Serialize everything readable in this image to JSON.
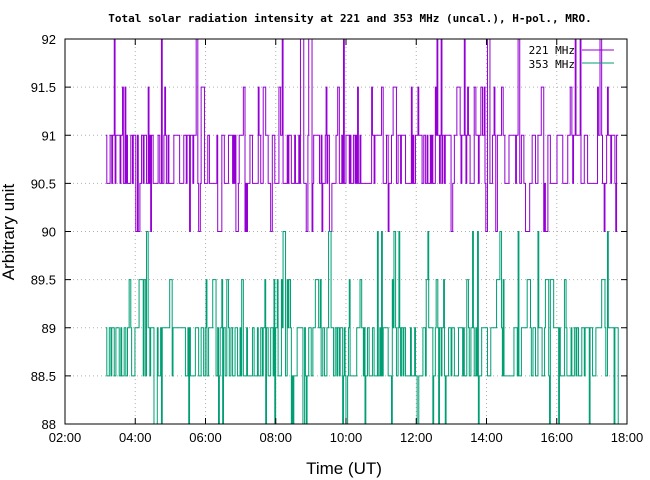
{
  "chart_data": {
    "type": "line",
    "title": "Total solar radiation intensity at 221 and 353 MHz (uncal.), H-pol., MRO.",
    "xlabel": "Time (UT)",
    "ylabel": "Arbitrary unit",
    "xlim": [
      "02:00",
      "18:00"
    ],
    "ylim": [
      88,
      92
    ],
    "x_ticks": [
      "02:00",
      "04:00",
      "06:00",
      "08:00",
      "10:00",
      "12:00",
      "14:00",
      "16:00",
      "18:00"
    ],
    "y_ticks": [
      "88",
      "88.5",
      "89",
      "89.5",
      "90",
      "90.5",
      "91",
      "91.5",
      "92"
    ],
    "grid": true,
    "legend_position": "top-right",
    "data_range": [
      "03:10",
      "17:45"
    ],
    "series": [
      {
        "name": "221 MHz",
        "color": "#9400d3",
        "levels": [
          90,
          90.5,
          91,
          91.5,
          92
        ],
        "baseline": 91,
        "description_x": "sampled from 03:10 to 17:45, quantized step signal"
      },
      {
        "name": "353 MHz",
        "color": "#009e73",
        "levels": [
          88,
          88.5,
          89,
          89.5,
          90
        ],
        "baseline": 89
      }
    ]
  }
}
